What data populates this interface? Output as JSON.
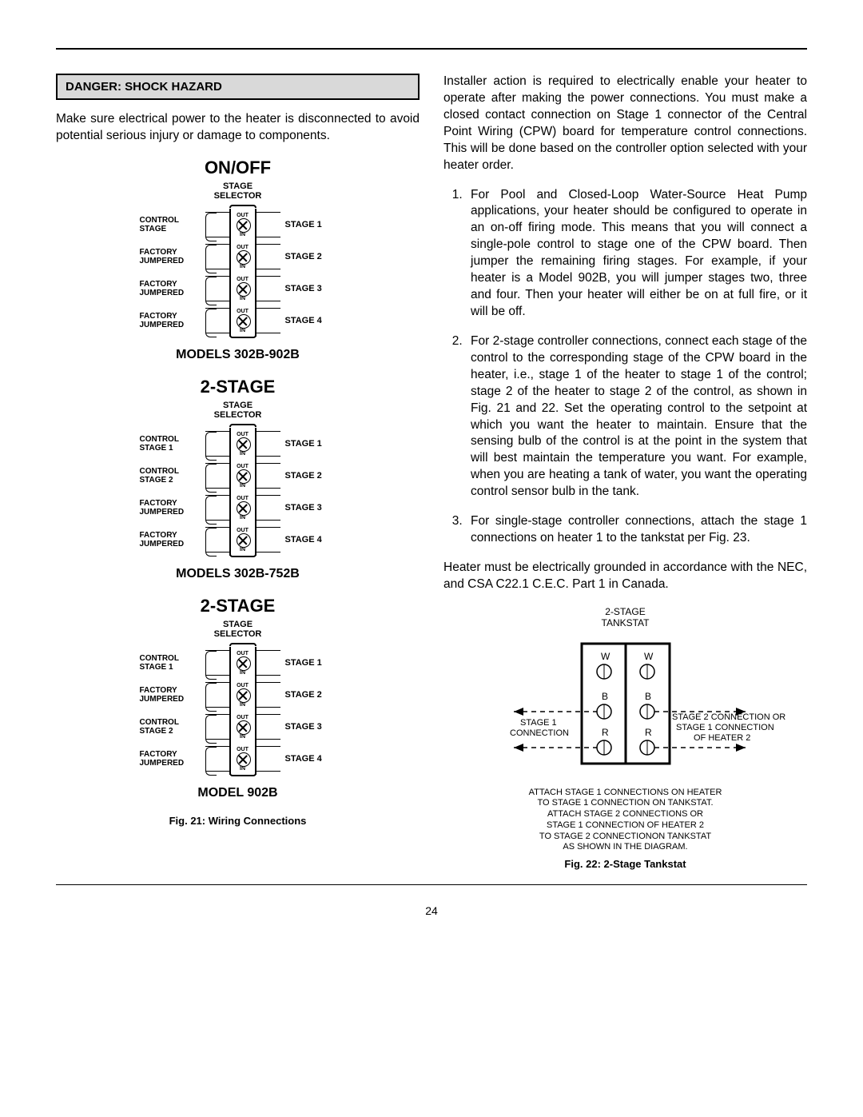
{
  "danger_label": "DANGER: SHOCK HAZARD",
  "left_para": "Make sure electrical power to the heater is disconnected to avoid potential serious injury or damage to components.",
  "right_intro": "Installer action is required to electrically enable your heater to operate after making the power connections. You must make a closed contact connection on Stage 1 connector of the Central Point Wiring (CPW) board for temperature control connections. This will be done based on the controller option selected with your heater order.",
  "list": [
    "For Pool and Closed-Loop Water-Source Heat Pump applications, your heater should be configured to operate in an on-off firing mode. This means that you will connect a single-pole control to stage one of the CPW board. Then jumper the remaining firing stages. For example, if your heater is a Model 902B, you will jumper stages two, three and four. Then your heater will either be on at full fire, or it will be off.",
    "For 2-stage controller connections, connect each stage of the control to the corresponding stage of the CPW board in the heater, i.e., stage 1 of the heater to stage 1 of the control; stage 2 of the heater to stage 2 of the control, as shown in Fig. 21 and 22. Set the operating control to the setpoint at which you want the heater to maintain. Ensure that the sensing bulb of the control is at the point in the system that will best maintain the temperature you want. For example, when you are heating a tank of water, you want the operating control sensor bulb in the tank.",
    "For single-stage controller connections, attach the stage 1 connections on heater 1 to the tankstat per Fig. 23."
  ],
  "ground_para": "Heater must be electrically grounded in accordance with the NEC, and CSA C22.1 C.E.C. Part 1 in Canada.",
  "diagrams": [
    {
      "title": "ON/OFF",
      "sub_top": "STAGE",
      "sub_bot": "SELECTOR",
      "rows": [
        {
          "left_l1": "CONTROL",
          "left_l2": "STAGE",
          "right": "STAGE 1"
        },
        {
          "left_l1": "FACTORY",
          "left_l2": "JUMPERED",
          "right": "STAGE 2"
        },
        {
          "left_l1": "FACTORY",
          "left_l2": "JUMPERED",
          "right": "STAGE 3"
        },
        {
          "left_l1": "FACTORY",
          "left_l2": "JUMPERED",
          "right": "STAGE 4"
        }
      ],
      "models": "MODELS 302B-902B"
    },
    {
      "title": "2-STAGE",
      "sub_top": "STAGE",
      "sub_bot": "SELECTOR",
      "rows": [
        {
          "left_l1": "CONTROL",
          "left_l2": "STAGE 1",
          "right": "STAGE 1"
        },
        {
          "left_l1": "CONTROL",
          "left_l2": "STAGE 2",
          "right": "STAGE 2"
        },
        {
          "left_l1": "FACTORY",
          "left_l2": "JUMPERED",
          "right": "STAGE 3"
        },
        {
          "left_l1": "FACTORY",
          "left_l2": "JUMPERED",
          "right": "STAGE 4"
        }
      ],
      "models": "MODELS 302B-752B"
    },
    {
      "title": "2-STAGE",
      "sub_top": "STAGE",
      "sub_bot": "SELECTOR",
      "rows": [
        {
          "left_l1": "CONTROL",
          "left_l2": "STAGE 1",
          "right": "STAGE 1"
        },
        {
          "left_l1": "FACTORY",
          "left_l2": "JUMPERED",
          "right": "STAGE 2"
        },
        {
          "left_l1": "CONTROL",
          "left_l2": "STAGE 2",
          "right": "STAGE 3"
        },
        {
          "left_l1": "FACTORY",
          "left_l2": "JUMPERED",
          "right": "STAGE 4"
        }
      ],
      "models": "MODEL 902B"
    }
  ],
  "out_label": "OUT",
  "in_label": "IN",
  "fig21": "Fig. 21: Wiring Connections",
  "tankstat": {
    "title_l1": "2-STAGE",
    "title_l2": "TANKSTAT",
    "w": "W",
    "b": "B",
    "r": "R",
    "stage1_l1": "STAGE 1",
    "stage1_l2": "CONNECTION",
    "stage2_l1": "STAGE 2 CONNECTION OR",
    "stage2_l2": "STAGE 1 CONNECTION",
    "stage2_l3": "OF HEATER 2",
    "note_l1": "ATTACH STAGE 1 CONNECTIONS ON HEATER",
    "note_l2": "TO STAGE 1 CONNECTION ON TANKSTAT.",
    "note_l3": "ATTACH STAGE 2 CONNECTIONS OR",
    "note_l4": "STAGE 1 CONNECTION OF HEATER 2",
    "note_l5": "TO STAGE 2 CONNECTIONON TANKSTAT",
    "note_l6": "AS SHOWN IN THE DIAGRAM.",
    "colors": {
      "stroke": "#000000",
      "fill": "#ffffff"
    }
  },
  "fig22": "Fig. 22: 2-Stage Tankstat",
  "page": "24"
}
